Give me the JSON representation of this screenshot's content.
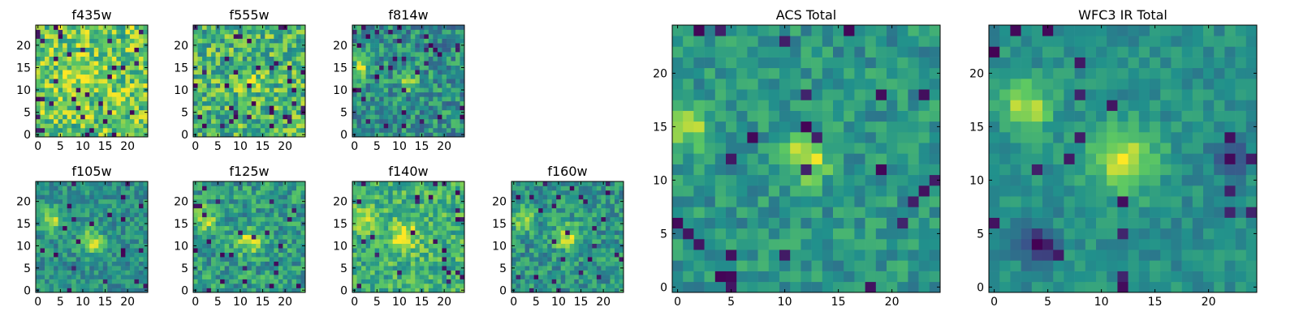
{
  "colors": {
    "colormap": [
      "#440154",
      "#3b528b",
      "#21918c",
      "#5ec962",
      "#fde725"
    ],
    "axis_frame": "#000000",
    "background": "#ffffff"
  },
  "chart_data": [
    {
      "type": "heatmap",
      "title": "f435w",
      "size": 25,
      "colormap": "viridis",
      "xticks": [
        0,
        5,
        10,
        15,
        20
      ],
      "yticks": [
        0,
        5,
        10,
        15,
        20
      ],
      "base": 0.74,
      "noise": 0.26,
      "dark_frac": 0.05,
      "seed": 11,
      "blobs": [
        {
          "x": 10,
          "y": 13,
          "amp": 0.12,
          "sigma": 3
        }
      ]
    },
    {
      "type": "heatmap",
      "title": "f555w",
      "size": 25,
      "colormap": "viridis",
      "xticks": [
        0,
        5,
        10,
        15,
        20
      ],
      "yticks": [
        0,
        5,
        10,
        15,
        20
      ],
      "base": 0.66,
      "noise": 0.26,
      "dark_frac": 0.05,
      "seed": 22,
      "blobs": [
        {
          "x": 12,
          "y": 12,
          "amp": 0.25,
          "sigma": 1.6
        }
      ]
    },
    {
      "type": "heatmap",
      "title": "f814w",
      "size": 25,
      "colormap": "viridis",
      "xticks": [
        0,
        5,
        10,
        15,
        20
      ],
      "yticks": [
        0,
        5,
        10,
        15,
        20
      ],
      "base": 0.5,
      "noise": 0.22,
      "dark_frac": 0.04,
      "seed": 33,
      "blobs": [
        {
          "x": 12,
          "y": 12,
          "amp": 0.45,
          "sigma": 1.3
        },
        {
          "x": 1,
          "y": 15,
          "amp": 0.35,
          "sigma": 1.6
        }
      ]
    },
    {
      "type": "heatmap",
      "title": "f105w",
      "size": 25,
      "colormap": "viridis",
      "xticks": [
        0,
        5,
        10,
        15,
        20
      ],
      "yticks": [
        0,
        5,
        10,
        15,
        20
      ],
      "base": 0.5,
      "noise": 0.16,
      "dark_frac": 0.04,
      "seed": 44,
      "blobs": [
        {
          "x": 12,
          "y": 11,
          "amp": 0.42,
          "sigma": 1.8
        },
        {
          "x": 3,
          "y": 16,
          "amp": 0.38,
          "sigma": 1.8
        }
      ]
    },
    {
      "type": "heatmap",
      "title": "f125w",
      "size": 25,
      "colormap": "viridis",
      "xticks": [
        0,
        5,
        10,
        15,
        20
      ],
      "yticks": [
        0,
        5,
        10,
        15,
        20
      ],
      "base": 0.55,
      "noise": 0.2,
      "dark_frac": 0.05,
      "seed": 55,
      "blobs": [
        {
          "x": 12,
          "y": 11,
          "amp": 0.35,
          "sigma": 2
        },
        {
          "x": 2,
          "y": 16,
          "amp": 0.3,
          "sigma": 2
        }
      ]
    },
    {
      "type": "heatmap",
      "title": "f140w",
      "size": 25,
      "colormap": "viridis",
      "xticks": [
        0,
        5,
        10,
        15,
        20
      ],
      "yticks": [
        0,
        5,
        10,
        15,
        20
      ],
      "base": 0.64,
      "noise": 0.2,
      "dark_frac": 0.04,
      "seed": 66,
      "blobs": [
        {
          "x": 11,
          "y": 12,
          "amp": 0.3,
          "sigma": 2.5
        },
        {
          "x": 3,
          "y": 16,
          "amp": 0.2,
          "sigma": 2
        }
      ]
    },
    {
      "type": "heatmap",
      "title": "f160w",
      "size": 25,
      "colormap": "viridis",
      "xticks": [
        0,
        5,
        10,
        15,
        20
      ],
      "yticks": [
        0,
        5,
        10,
        15,
        20
      ],
      "base": 0.52,
      "noise": 0.18,
      "dark_frac": 0.05,
      "seed": 77,
      "blobs": [
        {
          "x": 12,
          "y": 12,
          "amp": 0.4,
          "sigma": 2
        },
        {
          "x": 2,
          "y": 16,
          "amp": 0.32,
          "sigma": 1.8
        }
      ]
    },
    {
      "type": "heatmap",
      "title": "ACS Total",
      "size": 25,
      "colormap": "viridis",
      "xticks": [
        0,
        5,
        10,
        15,
        20
      ],
      "yticks": [
        0,
        5,
        10,
        15,
        20
      ],
      "base": 0.52,
      "noise": 0.14,
      "dark_frac": 0.04,
      "seed": 88,
      "blobs": [
        {
          "x": 12,
          "y": 12,
          "amp": 0.42,
          "sigma": 1.6
        },
        {
          "x": 1,
          "y": 15,
          "amp": 0.33,
          "sigma": 1.6
        }
      ]
    },
    {
      "type": "heatmap",
      "title": "WFC3 IR Total",
      "size": 25,
      "colormap": "viridis",
      "xticks": [
        0,
        5,
        10,
        15,
        20
      ],
      "yticks": [
        0,
        5,
        10,
        15,
        20
      ],
      "base": 0.5,
      "noise": 0.1,
      "dark_frac": 0.03,
      "seed": 99,
      "blobs": [
        {
          "x": 12,
          "y": 12,
          "amp": 0.42,
          "sigma": 2.2
        },
        {
          "x": 3,
          "y": 17,
          "amp": 0.42,
          "sigma": 1.6
        },
        {
          "x": 4,
          "y": 4,
          "amp": -0.45,
          "sigma": 1.2
        },
        {
          "x": 22,
          "y": 12,
          "amp": -0.4,
          "sigma": 1.1
        }
      ]
    }
  ]
}
